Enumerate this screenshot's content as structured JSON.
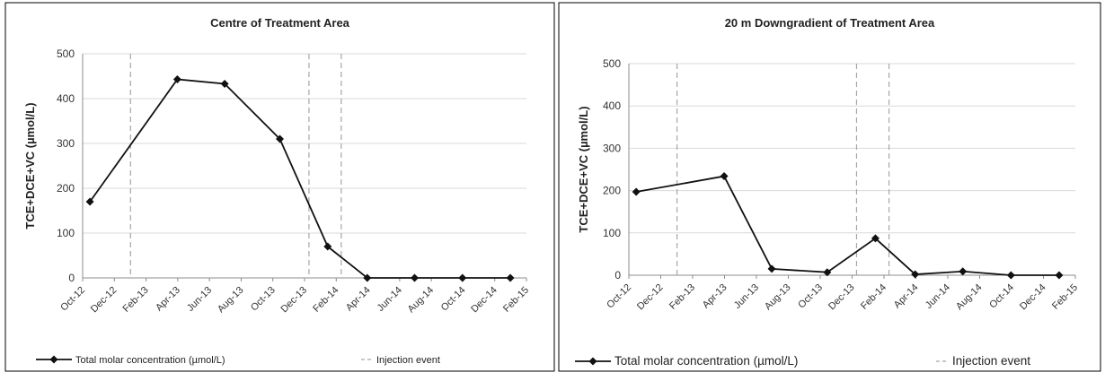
{
  "chart_data": [
    {
      "type": "line",
      "title": "Centre of Treatment Area",
      "ylabel": "TCE+DCE+VC (µmol/L)",
      "xlabel": "",
      "ylim": [
        0,
        500
      ],
      "yticks": [
        0,
        100,
        200,
        300,
        400,
        500
      ],
      "x_ticks": [
        "Oct-12",
        "Dec-12",
        "Feb-13",
        "Apr-13",
        "Jun-13",
        "Aug-13",
        "Oct-13",
        "Dec-13",
        "Feb-14",
        "Apr-14",
        "Jun-14",
        "Aug-14",
        "Oct-14",
        "Dec-14",
        "Feb-15"
      ],
      "xlim": [
        "2012-10-01",
        "2015-02-01"
      ],
      "grid": "horizontal",
      "legend_position": "bottom",
      "series": [
        {
          "name": "Total molar concentration (µmol/L)",
          "x": [
            "2012-10-15",
            "2013-04-01",
            "2013-07-01",
            "2013-10-15",
            "2014-01-15",
            "2014-04-01",
            "2014-07-01",
            "2014-10-01",
            "2015-01-01"
          ],
          "y": [
            170,
            443,
            433,
            310,
            70,
            0,
            0,
            0,
            0
          ]
        }
      ],
      "injection_events": {
        "name": "Injection event",
        "dates": [
          "2013-01-01",
          "2013-12-10",
          "2014-02-10"
        ]
      }
    },
    {
      "type": "line",
      "title": "20 m Downgradient of Treatment Area",
      "ylabel": "TCE+DCE+VC (µmol/L)",
      "xlabel": "",
      "ylim": [
        0,
        500
      ],
      "yticks": [
        0,
        100,
        200,
        300,
        400,
        500
      ],
      "x_ticks": [
        "Oct-12",
        "Dec-12",
        "Feb-13",
        "Apr-13",
        "Jun-13",
        "Aug-13",
        "Oct-13",
        "Dec-13",
        "Feb-14",
        "Apr-14",
        "Jun-14",
        "Aug-14",
        "Oct-14",
        "Dec-14",
        "Feb-15"
      ],
      "xlim": [
        "2012-10-01",
        "2015-02-01"
      ],
      "grid": "horizontal",
      "legend_position": "bottom",
      "series": [
        {
          "name": "Total molar concentration (µmol/L)",
          "x": [
            "2012-10-15",
            "2013-04-01",
            "2013-07-01",
            "2013-10-15",
            "2014-01-15",
            "2014-04-01",
            "2014-07-01",
            "2014-10-01",
            "2015-01-01"
          ],
          "y": [
            197,
            234,
            15,
            7,
            87,
            2,
            9,
            0,
            0
          ]
        }
      ],
      "injection_events": {
        "name": "Injection event",
        "dates": [
          "2013-01-01",
          "2013-12-10",
          "2014-02-10"
        ]
      }
    }
  ],
  "colors": {
    "series": "#111111",
    "grid": "#d9d9d9",
    "injection": "#a6a6a6",
    "axis": "#8c8c8c",
    "border": "#000000"
  }
}
